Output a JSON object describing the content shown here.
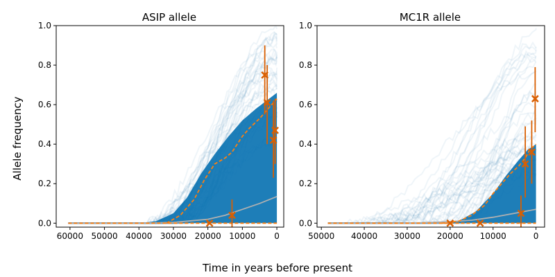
{
  "figure": {
    "ylabel": "Allele frequency",
    "xlabel": "Time in years before present"
  },
  "colors": {
    "trajectory": "#1f6fb0",
    "band": "#0570b0",
    "median": "#ff7f0e",
    "observed": "#d95f02",
    "mean": "#b0b0b0",
    "axis": "#000000"
  },
  "chart_data": [
    {
      "type": "line",
      "title": "ASIP allele",
      "xlabel": "Time in years before present",
      "ylabel": "Allele frequency",
      "xlim": [
        64000,
        -2000
      ],
      "ylim": [
        -0.02,
        1.0
      ],
      "xticks": [
        60000,
        50000,
        40000,
        30000,
        20000,
        10000,
        0
      ],
      "xtick_labels": [
        "60000",
        "50000",
        "40000",
        "30000",
        "20000",
        "10000",
        "0"
      ],
      "yticks": [
        0.0,
        0.2,
        0.4,
        0.6,
        0.8,
        1.0
      ],
      "ytick_labels": [
        "0.0",
        "0.2",
        "0.4",
        "0.6",
        "0.8",
        "1.0"
      ],
      "trajectories": {
        "count": 40,
        "start_x": 60500,
        "rise_from": [
          40000,
          26000
        ],
        "end_range": [
          0.4,
          1.0
        ]
      },
      "band_upper": {
        "x": [
          40000,
          35000,
          30000,
          26000,
          22000,
          18000,
          14000,
          10000,
          6000,
          3000,
          0
        ],
        "y": [
          0.0,
          0.01,
          0.05,
          0.13,
          0.25,
          0.35,
          0.44,
          0.52,
          0.58,
          0.62,
          0.66
        ]
      },
      "median_dashed": {
        "x": [
          32000,
          28000,
          24000,
          21000,
          18000,
          15000,
          13000,
          10000,
          8000,
          5000,
          3000,
          1000,
          0
        ],
        "y": [
          0.0,
          0.04,
          0.12,
          0.22,
          0.3,
          0.33,
          0.36,
          0.44,
          0.48,
          0.53,
          0.57,
          0.61,
          0.63
        ]
      },
      "mean_solid": {
        "x": [
          60500,
          40000,
          30000,
          20000,
          15000,
          10000,
          5000,
          0
        ],
        "y": [
          0.0,
          0.0,
          0.004,
          0.02,
          0.04,
          0.07,
          0.1,
          0.135
        ]
      },
      "zero_dashed": {
        "x": [
          60500,
          0
        ],
        "y": [
          0.0,
          0.0
        ]
      },
      "observations": [
        {
          "x": 19500,
          "y": 0.0,
          "lo": 0.0,
          "hi": 0.0
        },
        {
          "x": 13000,
          "y": 0.04,
          "lo": -0.02,
          "hi": 0.12
        },
        {
          "x": 3500,
          "y": 0.75,
          "lo": 0.55,
          "hi": 0.9
        },
        {
          "x": 2800,
          "y": 0.61,
          "lo": 0.4,
          "hi": 0.8
        },
        {
          "x": 1000,
          "y": 0.42,
          "lo": 0.23,
          "hi": 0.62
        },
        {
          "x": 500,
          "y": 0.47,
          "lo": 0.3,
          "hi": 0.63
        }
      ]
    },
    {
      "type": "line",
      "title": "MC1R allele",
      "xlabel": "Time in years before present",
      "ylabel": "Allele frequency",
      "xlim": [
        51000,
        -2000
      ],
      "ylim": [
        -0.02,
        1.0
      ],
      "xticks": [
        50000,
        40000,
        30000,
        20000,
        10000,
        0
      ],
      "xtick_labels": [
        "50000",
        "40000",
        "30000",
        "20000",
        "10000",
        "0"
      ],
      "yticks": [
        0.0,
        0.2,
        0.4,
        0.6,
        0.8,
        1.0
      ],
      "ytick_labels": [
        "0.0",
        "0.2",
        "0.4",
        "0.6",
        "0.8",
        "1.0"
      ],
      "trajectories": {
        "count": 40,
        "start_x": 48500,
        "rise_from": [
          45000,
          15000
        ],
        "end_range": [
          0.2,
          1.0
        ]
      },
      "band_upper": {
        "x": [
          22000,
          18000,
          14000,
          10000,
          7000,
          4000,
          2000,
          0
        ],
        "y": [
          0.0,
          0.01,
          0.06,
          0.15,
          0.24,
          0.32,
          0.37,
          0.4
        ]
      },
      "median_dashed": {
        "x": [
          22000,
          18000,
          15000,
          12000,
          10000,
          8000,
          6000,
          4000,
          2500,
          1500,
          0
        ],
        "y": [
          0.0,
          0.01,
          0.04,
          0.09,
          0.15,
          0.2,
          0.25,
          0.29,
          0.33,
          0.37,
          0.4
        ]
      },
      "mean_solid": {
        "x": [
          48500,
          30000,
          20000,
          15000,
          10000,
          5000,
          0
        ],
        "y": [
          0.0,
          0.0,
          0.008,
          0.015,
          0.03,
          0.05,
          0.07
        ]
      },
      "zero_dashed": {
        "x": [
          48500,
          0
        ],
        "y": [
          0.0,
          0.0
        ]
      },
      "observations": [
        {
          "x": 20000,
          "y": 0.0,
          "lo": 0.0,
          "hi": 0.0
        },
        {
          "x": 13000,
          "y": 0.0,
          "lo": 0.0,
          "hi": 0.0
        },
        {
          "x": 3500,
          "y": 0.05,
          "lo": -0.02,
          "hi": 0.14
        },
        {
          "x": 2500,
          "y": 0.3,
          "lo": 0.13,
          "hi": 0.49
        },
        {
          "x": 1000,
          "y": 0.36,
          "lo": 0.2,
          "hi": 0.52
        },
        {
          "x": 200,
          "y": 0.63,
          "lo": 0.46,
          "hi": 0.79
        }
      ]
    }
  ]
}
